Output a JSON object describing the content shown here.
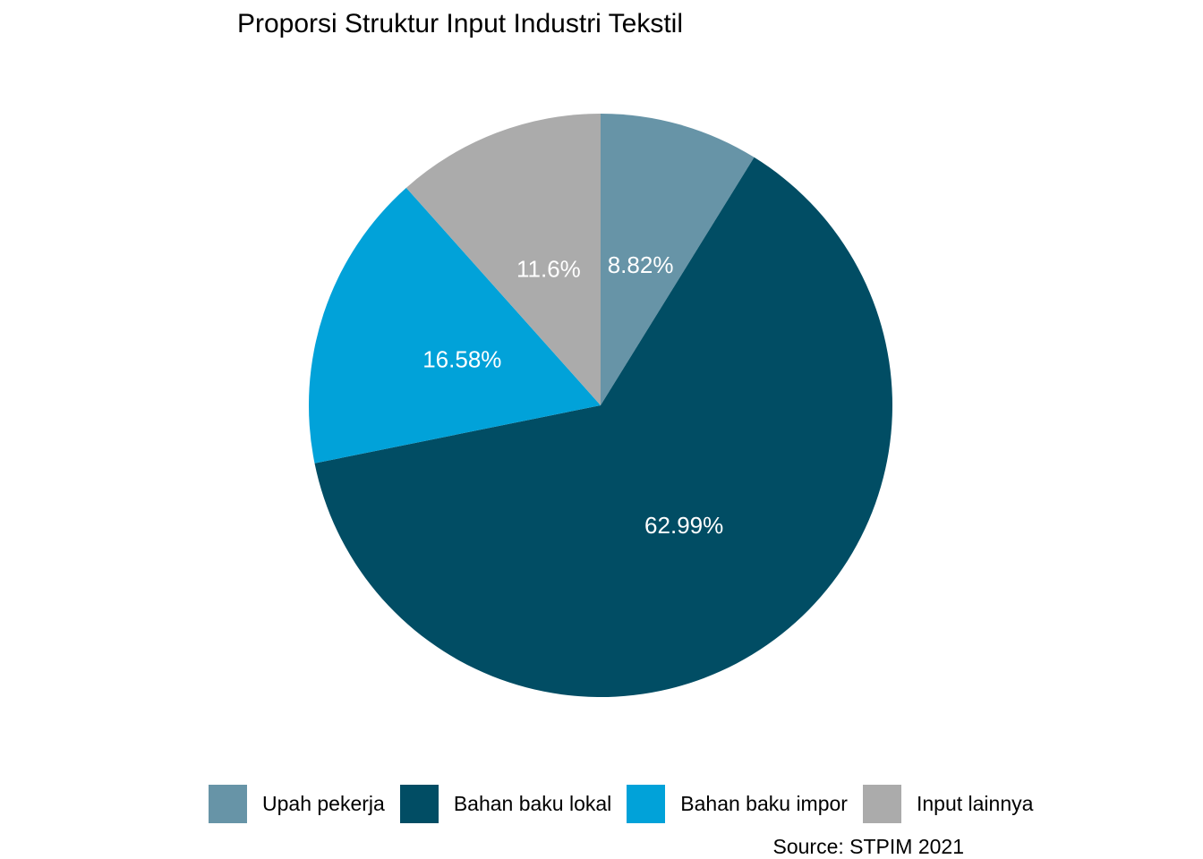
{
  "chart_data": {
    "type": "pie",
    "title": "Proporsi Struktur Input Industri Tekstil",
    "caption": "Source: STPIM 2021",
    "legend_position": "bottom",
    "slices": [
      {
        "name": "Upah pekerja",
        "value": 8.82,
        "label": "8.82%",
        "color": "#6794A7"
      },
      {
        "name": "Bahan baku lokal",
        "value": 62.99,
        "label": "62.99%",
        "color": "#014D64"
      },
      {
        "name": "Bahan baku impor",
        "value": 16.58,
        "label": "16.58%",
        "color": "#01A2D9"
      },
      {
        "name": "Input lainnya",
        "value": 11.6,
        "label": "11.6%",
        "color": "#ABABAB"
      }
    ]
  }
}
